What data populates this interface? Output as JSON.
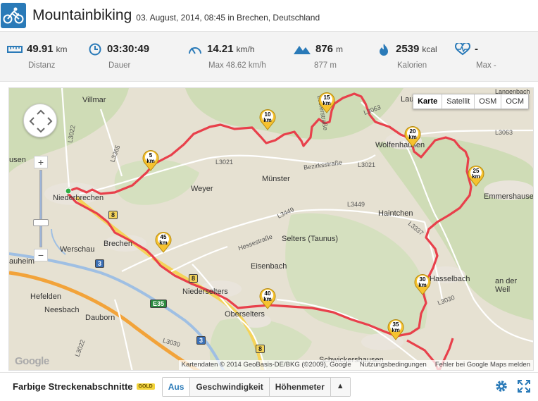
{
  "header": {
    "title": "Mountainbiking",
    "subtitle": "03. August, 2014, 08:45 in Brechen, Deutschland",
    "sport_icon": "bicycle-icon",
    "accent": "#2a7ab8"
  },
  "stats": [
    {
      "icon": "ruler-icon",
      "value": "49.91",
      "unit": "km",
      "label": "Distanz"
    },
    {
      "icon": "clock-icon",
      "value": "03:30:49",
      "unit": "",
      "label": "Dauer"
    },
    {
      "icon": "speedometer-icon",
      "value": "14.21",
      "unit": "km/h",
      "label": "Max 48.62 km/h"
    },
    {
      "icon": "mountain-icon",
      "value": "876",
      "unit": "m",
      "label": "877 m"
    },
    {
      "icon": "flame-icon",
      "value": "2539",
      "unit": "kcal",
      "label": "Kalorien"
    },
    {
      "icon": "heartrate-icon",
      "value": "-",
      "unit": "",
      "label": "Max -"
    }
  ],
  "map": {
    "types": [
      "Karte",
      "Satellit",
      "OSM",
      "OCM"
    ],
    "selected_type": "Karte",
    "towns": [
      "Villmar",
      "Niederbrechen",
      "Brechen",
      "Werschau",
      "Weyer",
      "Münster",
      "Haintchen",
      "Selters (Taunus)",
      "Eisenbach",
      "Niederselters",
      "Oberselters",
      "Dauborn",
      "Neesbach",
      "Wolfenhausen",
      "Emmershausen",
      "Hasselbach",
      "an der Weil",
      "Schwickershausen",
      "Lau",
      "auheim",
      "Hefelden",
      "usen",
      "Langenbach"
    ],
    "roads": [
      "L3022",
      "L3365",
      "L3021",
      "L3063",
      "Bezirksstraße",
      "L3449",
      "L3337",
      "L3030",
      "Hessestraße",
      "L3063",
      "L3449",
      "L3021",
      "L3030",
      "L3022",
      "Lesterstraße"
    ],
    "shields": [
      "8",
      "3",
      "E35",
      "8",
      "3",
      "8"
    ],
    "markers": [
      "5 km",
      "10 km",
      "15 km",
      "20 km",
      "25 km",
      "30 km",
      "35 km",
      "40 km",
      "45 km"
    ],
    "attribution": "Kartendaten © 2014 GeoBasis-DE/BKG (©2009), Google",
    "terms": "Nutzungsbedingungen",
    "report": "Fehler bei Google Maps melden",
    "google_logo": "Google",
    "route_color": "#e8404b"
  },
  "footer": {
    "label": "Farbige Streckenabschnitte",
    "badge": "GOLD",
    "options": [
      "Aus",
      "Geschwindigkeit",
      "Höhenmeter"
    ],
    "expand_symbol": "▲"
  }
}
